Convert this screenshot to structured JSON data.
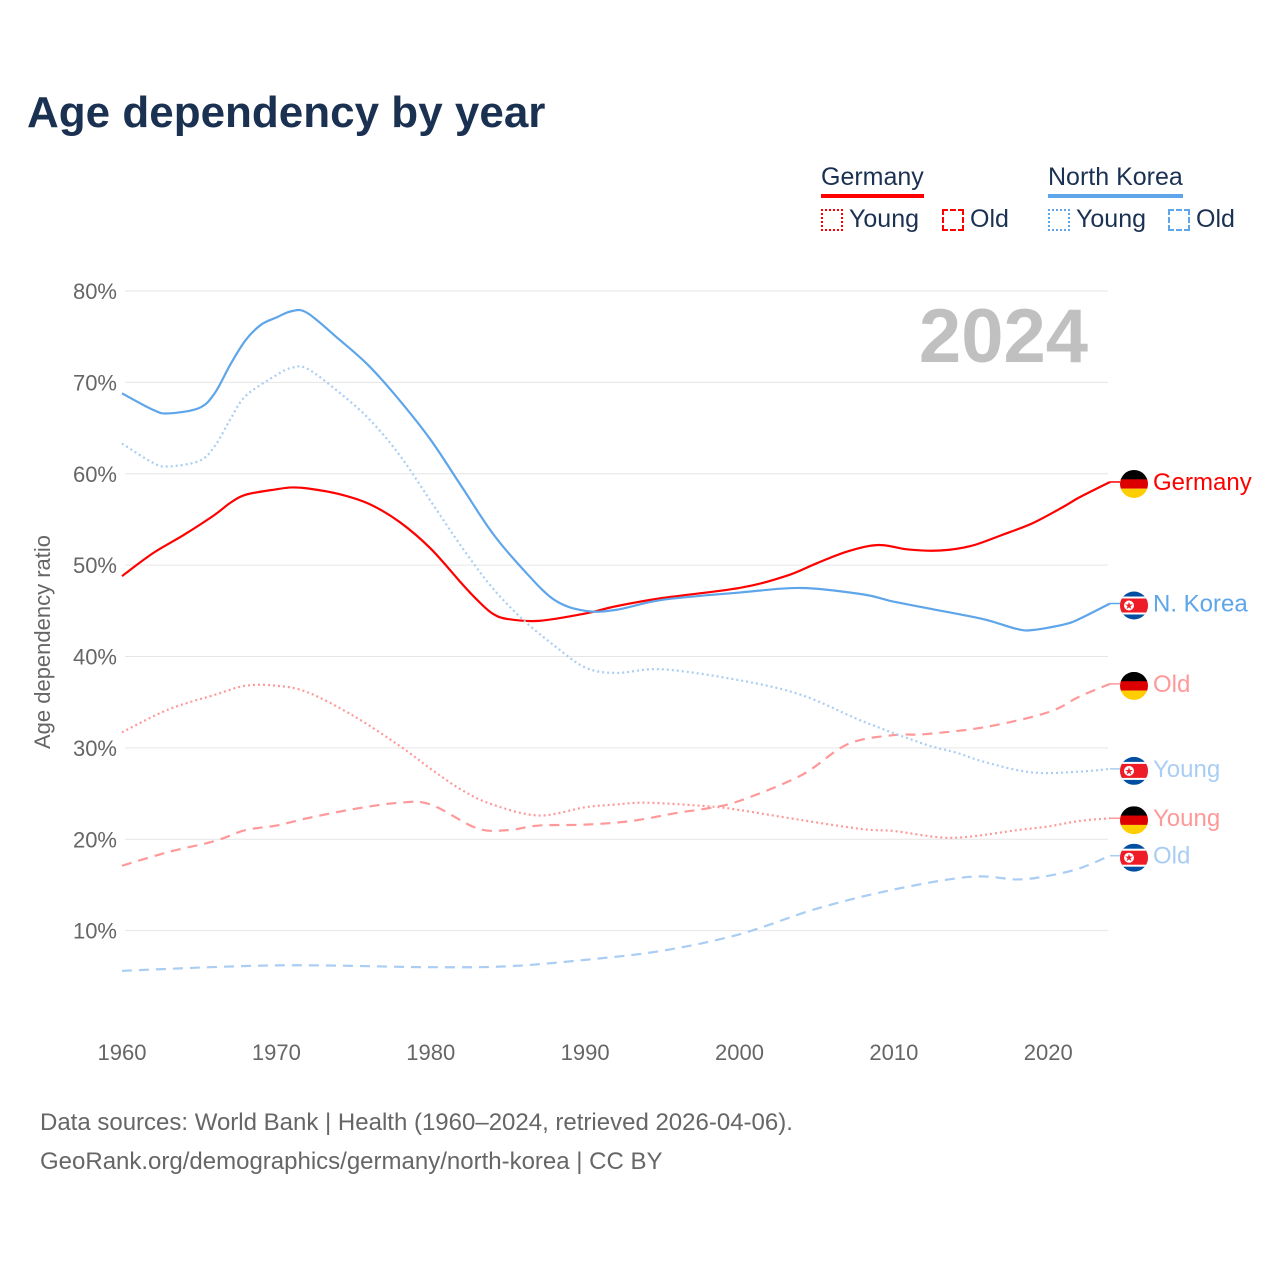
{
  "chart_data": {
    "type": "line",
    "title": "Age dependency by year",
    "ylabel": "Age dependency ratio",
    "xlabel": "",
    "xlim": [
      1960,
      2024
    ],
    "ylim": [
      0,
      80
    ],
    "x_ticks": [
      "1960",
      "1970",
      "1980",
      "1990",
      "2000",
      "2010",
      "2020"
    ],
    "y_ticks": [
      "10%",
      "20%",
      "30%",
      "40%",
      "50%",
      "60%",
      "70%",
      "80%"
    ],
    "grid": true,
    "year_watermark": "2024",
    "legend": {
      "placement": "top-right",
      "groups": [
        {
          "name": "Germany",
          "color": "#ff0000",
          "items": [
            "Young",
            "Old"
          ]
        },
        {
          "name": "North Korea",
          "color": "#5ea5ea",
          "items": [
            "Young",
            "Old"
          ]
        }
      ]
    },
    "series": [
      {
        "name": "Germany",
        "end_label": "Germany",
        "flag": "germany",
        "color": "#ff0000",
        "style": "solid",
        "points": [
          [
            1960,
            48.8
          ],
          [
            1962,
            51.3
          ],
          [
            1964,
            53.3
          ],
          [
            1966,
            55.5
          ],
          [
            1967,
            56.8
          ],
          [
            1968,
            57.7
          ],
          [
            1970,
            58.3
          ],
          [
            1971,
            58.5
          ],
          [
            1972,
            58.4
          ],
          [
            1974,
            57.8
          ],
          [
            1976,
            56.7
          ],
          [
            1978,
            54.7
          ],
          [
            1980,
            51.8
          ],
          [
            1982,
            48.0
          ],
          [
            1983,
            46.2
          ],
          [
            1984,
            44.7
          ],
          [
            1985,
            44.1
          ],
          [
            1987,
            43.9
          ],
          [
            1990,
            44.7
          ],
          [
            1992,
            45.5
          ],
          [
            1995,
            46.4
          ],
          [
            2000,
            47.5
          ],
          [
            2003,
            48.8
          ],
          [
            2005,
            50.2
          ],
          [
            2007,
            51.5
          ],
          [
            2009,
            52.2
          ],
          [
            2011,
            51.7
          ],
          [
            2013,
            51.6
          ],
          [
            2015,
            52.1
          ],
          [
            2017,
            53.3
          ],
          [
            2019,
            54.6
          ],
          [
            2021,
            56.4
          ],
          [
            2022,
            57.4
          ],
          [
            2024,
            59.1
          ]
        ]
      },
      {
        "name": "North Korea",
        "end_label": "N. Korea",
        "flag": "north-korea",
        "color": "#5ea5ea",
        "style": "solid",
        "points": [
          [
            1960,
            68.8
          ],
          [
            1962,
            67.0
          ],
          [
            1963,
            66.6
          ],
          [
            1965,
            67.2
          ],
          [
            1966,
            68.8
          ],
          [
            1967,
            71.9
          ],
          [
            1968,
            74.6
          ],
          [
            1969,
            76.3
          ],
          [
            1970,
            77.1
          ],
          [
            1971,
            77.8
          ],
          [
            1972,
            77.6
          ],
          [
            1974,
            74.8
          ],
          [
            1976,
            71.8
          ],
          [
            1978,
            68.0
          ],
          [
            1980,
            63.7
          ],
          [
            1982,
            58.6
          ],
          [
            1984,
            53.5
          ],
          [
            1986,
            49.5
          ],
          [
            1988,
            46.2
          ],
          [
            1990,
            45.0
          ],
          [
            1992,
            45.1
          ],
          [
            1995,
            46.2
          ],
          [
            2000,
            47.0
          ],
          [
            2004,
            47.5
          ],
          [
            2008,
            46.8
          ],
          [
            2010,
            46.0
          ],
          [
            2014,
            44.7
          ],
          [
            2016,
            44.0
          ],
          [
            2018,
            43.0
          ],
          [
            2019,
            42.9
          ],
          [
            2021,
            43.5
          ],
          [
            2022,
            44.1
          ],
          [
            2024,
            45.8
          ]
        ]
      },
      {
        "name": "Germany Old",
        "end_label": "Old",
        "flag": "germany",
        "color": "#ff9999",
        "style": "dashed",
        "points": [
          [
            1960,
            17.1
          ],
          [
            1963,
            18.6
          ],
          [
            1966,
            19.8
          ],
          [
            1968,
            21.0
          ],
          [
            1970,
            21.5
          ],
          [
            1972,
            22.3
          ],
          [
            1975,
            23.3
          ],
          [
            1978,
            24.0
          ],
          [
            1980,
            23.8
          ],
          [
            1983,
            21.2
          ],
          [
            1985,
            21.0
          ],
          [
            1987,
            21.5
          ],
          [
            1990,
            21.6
          ],
          [
            1993,
            22.0
          ],
          [
            1996,
            22.9
          ],
          [
            1998,
            23.4
          ],
          [
            2000,
            24.2
          ],
          [
            2004,
            27.0
          ],
          [
            2007,
            30.4
          ],
          [
            2010,
            31.4
          ],
          [
            2012,
            31.5
          ],
          [
            2016,
            32.3
          ],
          [
            2020,
            33.9
          ],
          [
            2022,
            35.6
          ],
          [
            2024,
            37.0
          ]
        ]
      },
      {
        "name": "North Korea Young",
        "end_label": "Young",
        "flag": "north-korea",
        "color": "#a9cdf3",
        "style": "dotted",
        "points": [
          [
            1960,
            63.3
          ],
          [
            1962,
            61.2
          ],
          [
            1963,
            60.8
          ],
          [
            1965,
            61.4
          ],
          [
            1966,
            63.0
          ],
          [
            1967,
            65.9
          ],
          [
            1968,
            68.5
          ],
          [
            1970,
            70.8
          ],
          [
            1971,
            71.6
          ],
          [
            1972,
            71.5
          ],
          [
            1974,
            69.0
          ],
          [
            1976,
            66.0
          ],
          [
            1978,
            62.0
          ],
          [
            1980,
            57.0
          ],
          [
            1982,
            52.0
          ],
          [
            1984,
            47.5
          ],
          [
            1986,
            44.0
          ],
          [
            1988,
            41.2
          ],
          [
            1990,
            38.8
          ],
          [
            1992,
            38.2
          ],
          [
            1995,
            38.6
          ],
          [
            2000,
            37.4
          ],
          [
            2004,
            35.8
          ],
          [
            2008,
            32.9
          ],
          [
            2012,
            30.4
          ],
          [
            2014,
            29.5
          ],
          [
            2016,
            28.4
          ],
          [
            2019,
            27.3
          ],
          [
            2022,
            27.4
          ],
          [
            2024,
            27.7
          ]
        ]
      },
      {
        "name": "Germany Young",
        "end_label": "Young",
        "flag": "germany",
        "color": "#ff9999",
        "style": "dotted",
        "points": [
          [
            1960,
            31.7
          ],
          [
            1963,
            34.2
          ],
          [
            1966,
            35.8
          ],
          [
            1968,
            36.8
          ],
          [
            1970,
            36.8
          ],
          [
            1972,
            36.1
          ],
          [
            1975,
            33.5
          ],
          [
            1978,
            30.2
          ],
          [
            1980,
            27.7
          ],
          [
            1982,
            25.4
          ],
          [
            1984,
            23.8
          ],
          [
            1987,
            22.6
          ],
          [
            1990,
            23.5
          ],
          [
            1992,
            23.8
          ],
          [
            1994,
            24.0
          ],
          [
            1998,
            23.6
          ],
          [
            2000,
            23.2
          ],
          [
            2004,
            22.1
          ],
          [
            2008,
            21.1
          ],
          [
            2010,
            20.9
          ],
          [
            2013,
            20.2
          ],
          [
            2015,
            20.3
          ],
          [
            2018,
            21.0
          ],
          [
            2020,
            21.4
          ],
          [
            2022,
            22.0
          ],
          [
            2024,
            22.3
          ]
        ]
      },
      {
        "name": "North Korea Old",
        "end_label": "Old",
        "flag": "north-korea",
        "color": "#a9cdf3",
        "style": "dashed",
        "points": [
          [
            1960,
            5.6
          ],
          [
            1970,
            6.2
          ],
          [
            1980,
            6.0
          ],
          [
            1985,
            6.1
          ],
          [
            1990,
            6.8
          ],
          [
            1995,
            7.8
          ],
          [
            2000,
            9.6
          ],
          [
            2005,
            12.4
          ],
          [
            2010,
            14.5
          ],
          [
            2015,
            15.9
          ],
          [
            2018,
            15.6
          ],
          [
            2020,
            16.0
          ],
          [
            2022,
            16.8
          ],
          [
            2024,
            18.2
          ]
        ]
      }
    ]
  },
  "footer": {
    "line1": "Data sources: World Bank | Health (1960–2024, retrieved 2026-04-06).",
    "line2": "GeoRank.org/demographics/germany/north-korea | CC BY"
  }
}
